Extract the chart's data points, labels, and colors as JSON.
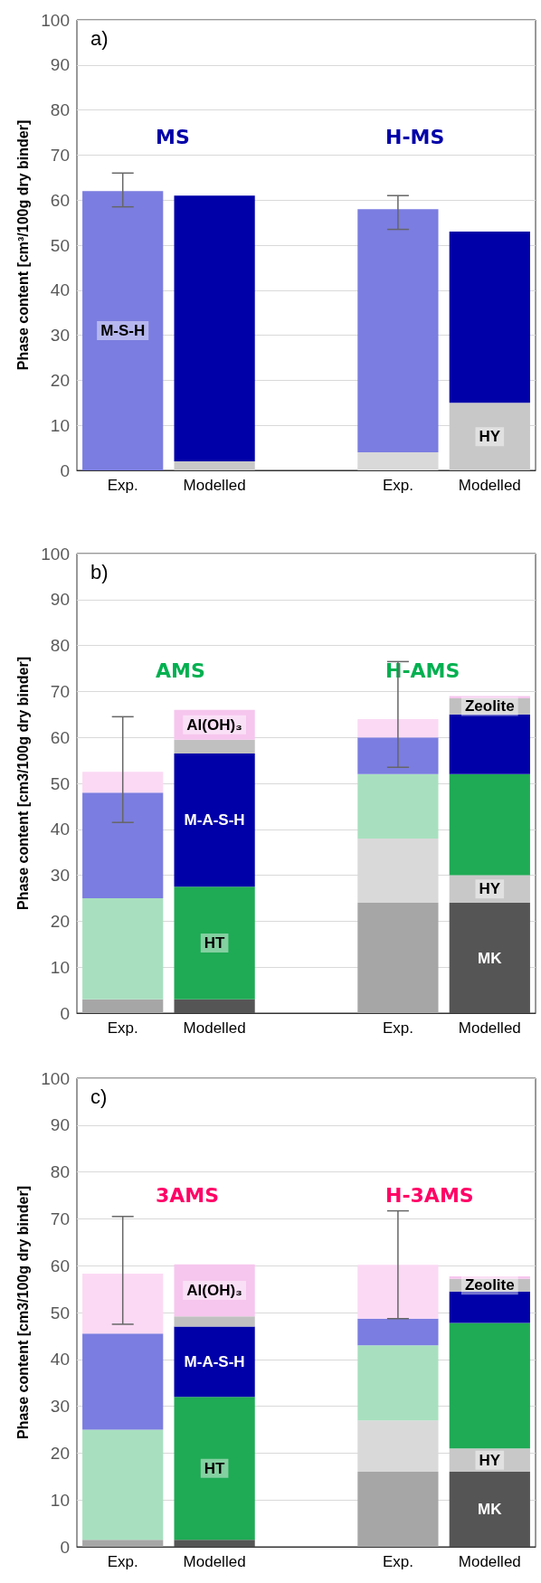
{
  "chart_data": [
    {
      "type": "bar",
      "title": "a)",
      "ylabel": "Phase content [cm³/100g dry binder]",
      "categories": [
        "Exp.",
        "Modelled",
        null,
        "Exp.",
        "Modelled"
      ],
      "stacked": true,
      "grid": "y",
      "ylim": [
        0,
        100
      ],
      "yticks": [
        0,
        10,
        20,
        30,
        40,
        50,
        60,
        70,
        80,
        90,
        100
      ],
      "annotations": [
        "MS",
        "H-MS"
      ],
      "series": [
        {
          "color": "#d9d9d9",
          "values": [
            null,
            null,
            null,
            4,
            null
          ]
        },
        {
          "name": "HY",
          "color": "#c8c8c8",
          "values": [
            null,
            2,
            null,
            null,
            15
          ]
        },
        {
          "name": "M-S-H",
          "color": "#7b7de0",
          "values": [
            62,
            null,
            null,
            54,
            null
          ],
          "errors": [
            [
              58.5,
              66
            ],
            null,
            null,
            [
              53.5,
              61
            ],
            null
          ]
        },
        {
          "color": "#0000a8",
          "values": [
            null,
            59,
            null,
            null,
            38
          ]
        }
      ]
    },
    {
      "type": "bar",
      "title": "b)",
      "ylabel": "Phase content [cm3/100g dry binder]",
      "categories": [
        "Exp.",
        "Modelled",
        null,
        "Exp.",
        "Modelled"
      ],
      "stacked": true,
      "grid": "y",
      "ylim": [
        0,
        100
      ],
      "yticks": [
        0,
        10,
        20,
        30,
        40,
        50,
        60,
        70,
        80,
        90,
        100
      ],
      "annotations": [
        "AMS",
        "H-AMS"
      ],
      "series": [
        {
          "color": "#a6a6a6",
          "values": [
            3,
            null,
            null,
            24,
            null
          ]
        },
        {
          "name": "MK",
          "color": "#555555",
          "values": [
            null,
            3,
            null,
            null,
            24
          ]
        },
        {
          "color": "#d9d9d9",
          "values": [
            null,
            null,
            null,
            14,
            null
          ]
        },
        {
          "name": "HY",
          "color": "#c8c8c8",
          "values": [
            null,
            null,
            null,
            null,
            6
          ]
        },
        {
          "color": "#a8e0bf",
          "values": [
            22,
            null,
            null,
            14,
            null
          ]
        },
        {
          "name": "HT",
          "color": "#1faa55",
          "values": [
            null,
            24.5,
            null,
            null,
            22
          ]
        },
        {
          "color": "#7b7de0",
          "values": [
            23,
            null,
            null,
            8,
            null
          ]
        },
        {
          "name": "M-A-S-H",
          "color": "#0000a8",
          "values": [
            null,
            29,
            null,
            null,
            13
          ]
        },
        {
          "name": "Zeolite",
          "color": "#c0c0c0",
          "values": [
            null,
            3,
            null,
            null,
            3.5
          ]
        },
        {
          "color": "#fbd9f4",
          "values": [
            4.5,
            null,
            null,
            4,
            null
          ],
          "errors": [
            [
              41.5,
              64.5
            ],
            null,
            null,
            [
              53.5,
              76.5
            ],
            null
          ]
        },
        {
          "name": "Al(OH)₃",
          "color": "#f6c6ee",
          "values": [
            null,
            6.5,
            null,
            null,
            0.5
          ]
        }
      ]
    },
    {
      "type": "bar",
      "title": "c)",
      "ylabel": "Phase content [cm3/100g dry binder]",
      "categories": [
        "Exp.",
        "Modelled",
        null,
        "Exp.",
        "Modelled"
      ],
      "stacked": true,
      "grid": "y",
      "ylim": [
        0,
        100
      ],
      "yticks": [
        0,
        10,
        20,
        30,
        40,
        50,
        60,
        70,
        80,
        90,
        100
      ],
      "annotations": [
        "3AMS",
        "H-3AMS"
      ],
      "series": [
        {
          "color": "#a6a6a6",
          "values": [
            1.5,
            null,
            null,
            16,
            null
          ]
        },
        {
          "name": "MK",
          "color": "#555555",
          "values": [
            null,
            1.5,
            null,
            null,
            16
          ]
        },
        {
          "color": "#d9d9d9",
          "values": [
            null,
            null,
            null,
            11,
            null
          ]
        },
        {
          "name": "HY",
          "color": "#c8c8c8",
          "values": [
            null,
            null,
            null,
            null,
            5
          ]
        },
        {
          "color": "#a8e0bf",
          "values": [
            23.5,
            null,
            null,
            16,
            null
          ]
        },
        {
          "name": "HT",
          "color": "#1faa55",
          "values": [
            null,
            30.5,
            null,
            null,
            26.8
          ]
        },
        {
          "color": "#7b7de0",
          "values": [
            20.5,
            null,
            null,
            5.7,
            null
          ]
        },
        {
          "name": "M-A-S-H",
          "color": "#0000a8",
          "values": [
            null,
            15,
            null,
            null,
            6.7
          ]
        },
        {
          "name": "Zeolite",
          "color": "#c0c0c0",
          "values": [
            null,
            2.2,
            null,
            null,
            2.7
          ]
        },
        {
          "color": "#fbd9f4",
          "values": [
            12.8,
            null,
            null,
            11.5,
            null
          ],
          "errors": [
            [
              47.5,
              70.5
            ],
            null,
            null,
            [
              48.7,
              71.7
            ],
            null
          ]
        },
        {
          "name": "Al(OH)₃",
          "color": "#f6c6ee",
          "values": [
            null,
            11.1,
            null,
            null,
            0.5
          ]
        }
      ]
    }
  ]
}
